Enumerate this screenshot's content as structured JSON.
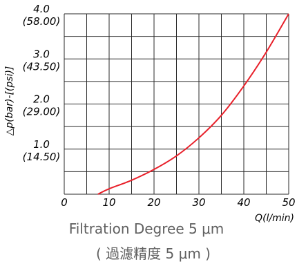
{
  "chart_data": {
    "type": "line",
    "xlabel": "Q(l/min)",
    "ylabel": "△p(bar)-[(psi)]",
    "xlim": [
      0,
      50
    ],
    "ylim": [
      0,
      4.0
    ],
    "grid": true,
    "x_ticks": [
      "0",
      "10",
      "20",
      "30",
      "40",
      "50"
    ],
    "y_ticks": [
      {
        "value": 4.0,
        "bar": "4.0",
        "psi": "(58.00)"
      },
      {
        "value": 3.0,
        "bar": "3.0",
        "psi": "(43.50)"
      },
      {
        "value": 2.0,
        "bar": "2.0",
        "psi": "(29.00)"
      },
      {
        "value": 1.0,
        "bar": "1.0",
        "psi": "(14.50)"
      }
    ],
    "series": [
      {
        "color": "#e8202a",
        "x": [
          7.5,
          10,
          15,
          20,
          25,
          30,
          35,
          40,
          45,
          50
        ],
        "y": [
          0.0,
          0.12,
          0.31,
          0.55,
          0.85,
          1.25,
          1.75,
          2.4,
          3.15,
          4.0
        ]
      }
    ]
  },
  "captions": {
    "line1": "Filtration Degree 5 μm",
    "line2": "( 過濾精度 5  μm )"
  }
}
